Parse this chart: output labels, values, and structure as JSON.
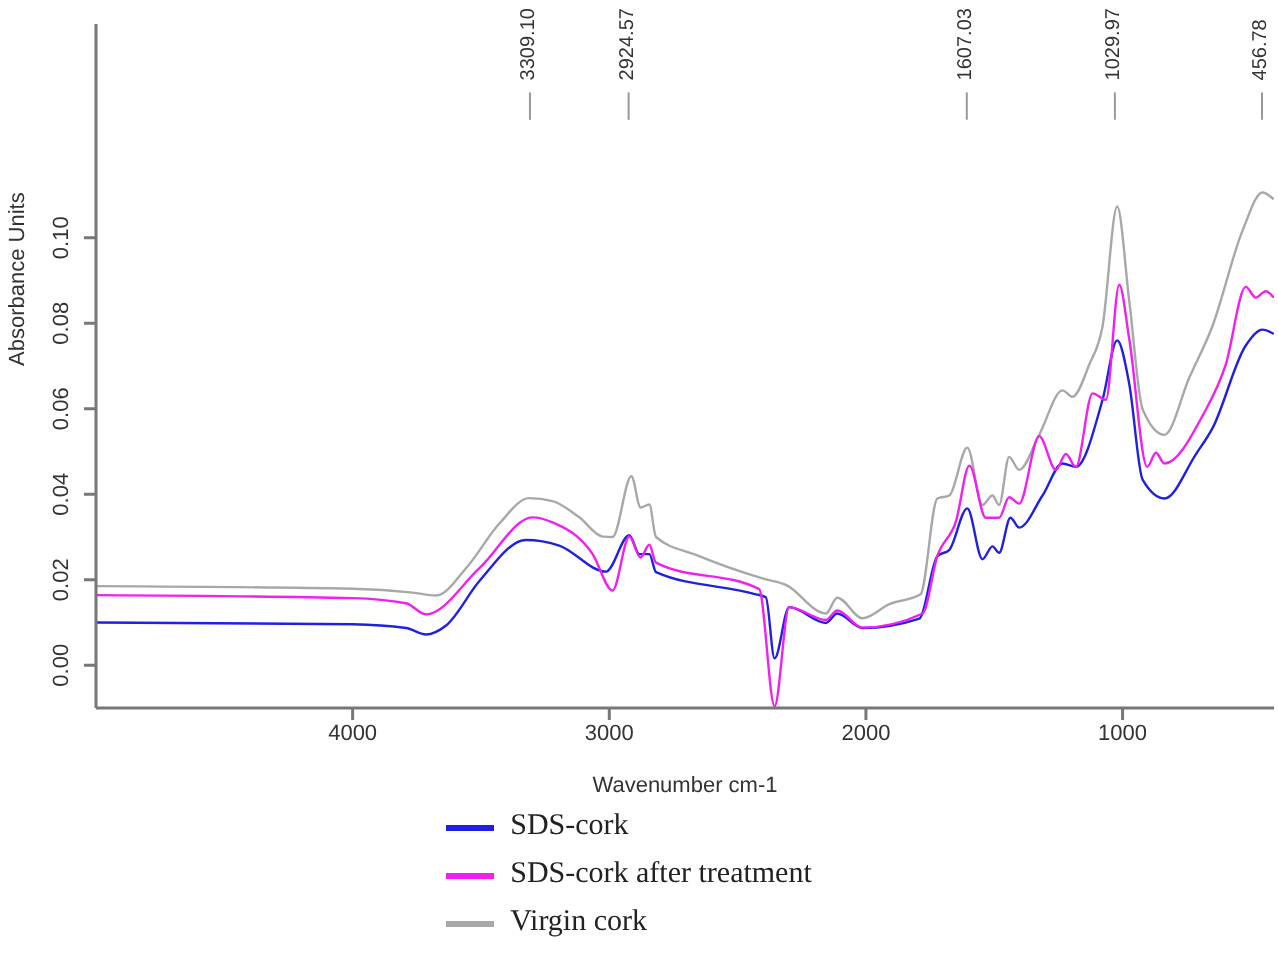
{
  "chart_data": {
    "type": "line",
    "xlabel": "Wavenumber cm-1",
    "ylabel": "Absorbance Units",
    "xlim": [
      5000,
      410
    ],
    "ylim": [
      -0.01,
      0.15
    ],
    "xticks": [
      4000,
      3000,
      2000,
      1000
    ],
    "yticks": [
      {
        "value": 0,
        "label": "0.00"
      },
      {
        "value": 0.02,
        "label": "0.02"
      },
      {
        "value": 0.04,
        "label": "0.04"
      },
      {
        "value": 0.06,
        "label": "0.06"
      },
      {
        "value": 0.08,
        "label": "0.08"
      },
      {
        "value": 0.1,
        "label": "0.10"
      }
    ],
    "legend": "bottom",
    "marker": "none",
    "line_style": "solid",
    "annotations": [
      {
        "text": "3309.10",
        "x": 3309.1
      },
      {
        "text": "2924.57",
        "x": 2924.57
      },
      {
        "text": "1607.03",
        "x": 1607.03
      },
      {
        "text": "1029.97",
        "x": 1029.97
      },
      {
        "text": "456.78",
        "x": 456.78
      }
    ],
    "series": [
      {
        "name": "Virgin cork",
        "color": "#a8a8a8",
        "x": [
          5000,
          4000,
          3766,
          3675,
          3558,
          3429,
          3312,
          3221,
          3117,
          3026,
          2987,
          2914,
          2878,
          2844,
          2818,
          2662,
          2403,
          2312,
          2156,
          2112,
          2013,
          1909,
          1787,
          1722,
          1675,
          1605,
          1546,
          1507,
          1481,
          1442,
          1403,
          1325,
          1234,
          1195,
          1130,
          1078,
          1021,
          974,
          922,
          837,
          740,
          650,
          533,
          455,
          411
        ],
        "values": [
          0.0185,
          0.0179,
          0.017,
          0.0163,
          0.0227,
          0.0331,
          0.0391,
          0.0384,
          0.0346,
          0.0301,
          0.03,
          0.0442,
          0.0369,
          0.0376,
          0.03,
          0.0258,
          0.0203,
          0.0188,
          0.0121,
          0.0158,
          0.011,
          0.0143,
          0.0166,
          0.039,
          0.0397,
          0.0509,
          0.0375,
          0.0397,
          0.0375,
          0.0487,
          0.0457,
          0.0539,
          0.0643,
          0.0628,
          0.0703,
          0.0793,
          0.1073,
          0.0852,
          0.0599,
          0.0539,
          0.0673,
          0.0793,
          0.1016,
          0.1106,
          0.109
        ]
      },
      {
        "name": "SDS-cork",
        "color": "#2020e0",
        "x": [
          5000,
          4000,
          3792,
          3714,
          3636,
          3506,
          3325,
          3195,
          3013,
          2922,
          2883,
          2844,
          2818,
          2429,
          2390,
          2356,
          2299,
          2156,
          2112,
          2013,
          1792,
          1722,
          1675,
          1605,
          1546,
          1507,
          1481,
          1437,
          1403,
          1312,
          1234,
          1182,
          1078,
          1021,
          974,
          922,
          837,
          714,
          650,
          520,
          455,
          411
        ],
        "values": [
          0.01,
          0.0096,
          0.0087,
          0.0072,
          0.0093,
          0.0197,
          0.0293,
          0.028,
          0.0219,
          0.0304,
          0.026,
          0.026,
          0.0218,
          0.0166,
          0.0159,
          0.0016,
          0.0136,
          0.0099,
          0.0121,
          0.0087,
          0.0109,
          0.0255,
          0.027,
          0.0367,
          0.0248,
          0.0278,
          0.0263,
          0.0345,
          0.0322,
          0.0397,
          0.0472,
          0.0464,
          0.0621,
          0.076,
          0.0658,
          0.0434,
          0.039,
          0.0494,
          0.0554,
          0.0748,
          0.0785,
          0.0775
        ]
      },
      {
        "name": "SDS-cork after treatment",
        "color": "#f020f0",
        "x": [
          5000,
          4000,
          3792,
          3714,
          3506,
          3299,
          3221,
          3065,
          2987,
          2922,
          2878,
          2844,
          2818,
          2416,
          2356,
          2299,
          2156,
          2112,
          2013,
          1779,
          1722,
          1649,
          1597,
          1533,
          1481,
          1442,
          1403,
          1325,
          1260,
          1221,
          1182,
          1117,
          1065,
          1013,
          974,
          904,
          870,
          837,
          688,
          598,
          520,
          481,
          442,
          411
        ],
        "values": [
          0.0164,
          0.0157,
          0.0145,
          0.0119,
          0.0227,
          0.0346,
          0.0334,
          0.026,
          0.0175,
          0.0301,
          0.0252,
          0.0282,
          0.024,
          0.0178,
          -0.0096,
          0.0136,
          0.0106,
          0.0128,
          0.0088,
          0.0121,
          0.0255,
          0.0337,
          0.0467,
          0.0345,
          0.0345,
          0.0393,
          0.0378,
          0.0536,
          0.0457,
          0.0494,
          0.0464,
          0.0636,
          0.0621,
          0.089,
          0.0763,
          0.0464,
          0.0497,
          0.0472,
          0.0584,
          0.0703,
          0.0885,
          0.086,
          0.0875,
          0.086
        ]
      }
    ]
  }
}
